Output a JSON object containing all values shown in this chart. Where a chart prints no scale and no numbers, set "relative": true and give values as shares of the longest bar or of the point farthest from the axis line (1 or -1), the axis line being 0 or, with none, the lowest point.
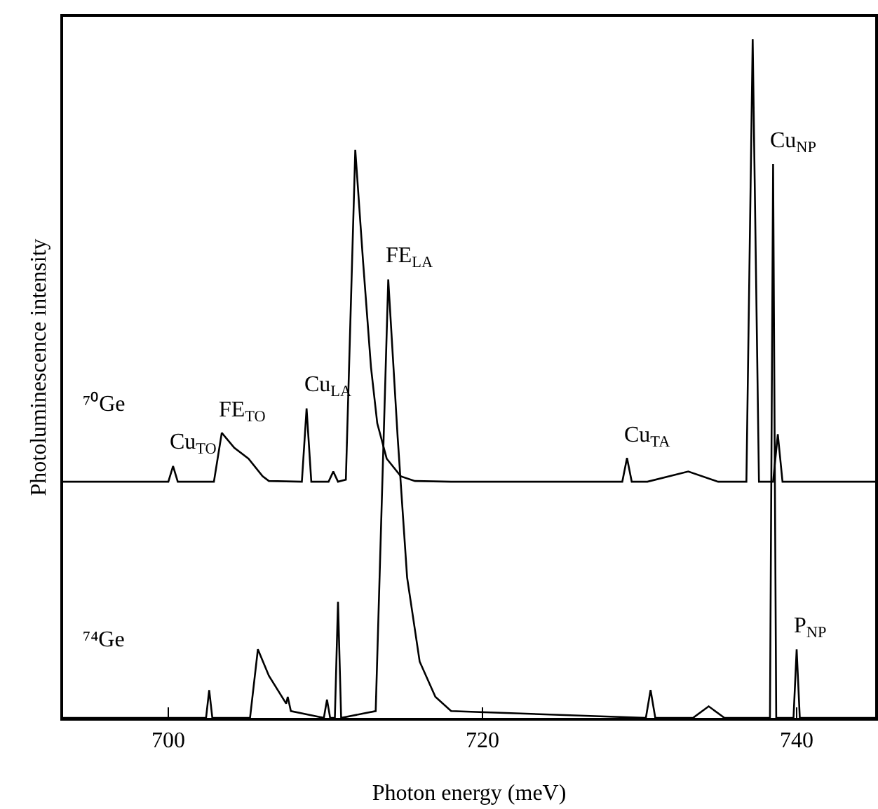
{
  "chart_data": {
    "type": "line",
    "relative": true,
    "xlabel": "Photon energy (meV)",
    "ylabel": "Photoluminescence intensity",
    "xlim": [
      693.3,
      745
    ],
    "xticks": [
      700,
      720,
      740
    ],
    "grid": false,
    "legend": false,
    "marker": "none",
    "line_style": "solid",
    "series": [
      {
        "name": "⁷⁰Ge",
        "color": "#000000",
        "x": [
          693.3,
          700.0,
          700.3,
          700.6,
          702.9,
          703.4,
          704.2,
          705.1,
          706.0,
          706.4,
          708.5,
          708.8,
          709.1,
          710.2,
          710.5,
          710.8,
          711.3,
          711.9,
          712.4,
          712.9,
          713.3,
          713.9,
          714.8,
          715.7,
          718,
          728.9,
          729.2,
          729.5,
          730.5,
          733.1,
          735,
          736.8,
          737.2,
          737.6,
          738.5,
          738.8,
          739.1,
          745
        ],
        "values": [
          0.348,
          0.348,
          0.371,
          0.348,
          0.348,
          0.42,
          0.398,
          0.382,
          0.356,
          0.349,
          0.348,
          0.456,
          0.348,
          0.348,
          0.363,
          0.348,
          0.351,
          0.837,
          0.671,
          0.517,
          0.434,
          0.382,
          0.356,
          0.349,
          0.348,
          0.348,
          0.383,
          0.348,
          0.348,
          0.363,
          0.348,
          0.348,
          1,
          0.348,
          0.348,
          0.418,
          0.348,
          0.348
        ]
      },
      {
        "name": "⁷⁴Ge",
        "color": "#000000",
        "x": [
          693.3,
          702.4,
          702.6,
          702.8,
          705.2,
          705.7,
          706.4,
          707.5,
          707.6,
          707.8,
          709.9,
          710.1,
          710.3,
          710.6,
          710.8,
          711.0,
          713.2,
          714.0,
          714.6,
          715.2,
          716.0,
          717.0,
          718.0,
          730.4,
          730.7,
          731.0,
          733.4,
          734.4,
          735.4,
          738.3,
          738.5,
          738.7,
          739.8,
          740.0,
          740.2,
          745
        ],
        "values": [
          0,
          0,
          0.041,
          0,
          0,
          0.101,
          0.062,
          0.021,
          0.031,
          0.01,
          0,
          0.027,
          0,
          0,
          0.171,
          0,
          0.01,
          0.646,
          0.413,
          0.207,
          0.083,
          0.031,
          0.01,
          0,
          0.041,
          0,
          0,
          0.017,
          0,
          0,
          0.816,
          0,
          0,
          0.101,
          0,
          0
        ]
      }
    ],
    "annotations": [
      {
        "text": "Cu$_{TO}$",
        "x": 700.3,
        "y": 0.371
      },
      {
        "text": "FE$_{TO}$",
        "x": 703.4,
        "y": 0.42
      },
      {
        "text": "Cu$_{LA}$",
        "x": 708.8,
        "y": 0.456
      },
      {
        "text": "FE$_{LA}$",
        "x": 714.0,
        "y": 0.646
      },
      {
        "text": "Cu$_{TA}$",
        "x": 729.2,
        "y": 0.383
      },
      {
        "text": "Cu$_{NP}$",
        "x": 738.5,
        "y": 0.816
      },
      {
        "text": "P$_{NP}$",
        "x": 740.0,
        "y": 0.101
      }
    ]
  }
}
